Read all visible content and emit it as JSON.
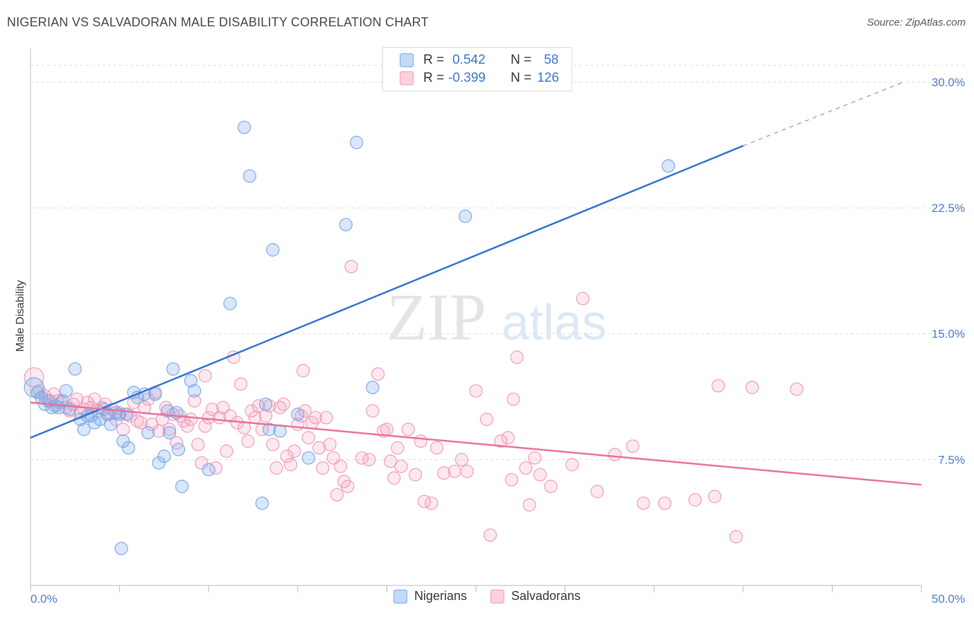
{
  "header": {
    "title": "NIGERIAN VS SALVADORAN MALE DISABILITY CORRELATION CHART",
    "source": "Source: ZipAtlas.com"
  },
  "watermark": {
    "zip": "ZIP",
    "atlas": "atlas"
  },
  "legend": {
    "rows": [
      {
        "r_label": "R =",
        "r_value": "0.542",
        "n_label": "N =",
        "n_value": "58",
        "color": "#7aaae8"
      },
      {
        "r_label": "R =",
        "r_value": "-0.399",
        "n_label": "N =",
        "n_value": "126",
        "color": "#f29bb8"
      }
    ]
  },
  "chart_data": {
    "type": "scatter",
    "title": "NIGERIAN VS SALVADORAN MALE DISABILITY CORRELATION CHART",
    "xlabel": "",
    "ylabel": "Male Disability",
    "xlim": [
      0,
      50
    ],
    "ylim": [
      0,
      32
    ],
    "x_tick_labels": [
      "0.0%",
      "50.0%"
    ],
    "y_ticks": [
      7.5,
      15.0,
      22.5,
      30.0
    ],
    "y_tick_labels": [
      "7.5%",
      "15.0%",
      "22.5%",
      "30.0%"
    ],
    "grid": true,
    "legend_position": "bottom",
    "series": [
      {
        "name": "Nigerians",
        "color": "#7aaae8",
        "line_color": "#2f72d0",
        "trend": {
          "x0": 0,
          "y0": 8.8,
          "x1": 40,
          "y1": 26.2,
          "dash_to_x": 49,
          "dash_to_y": 30.0
        },
        "points": [
          [
            0.2,
            11.8
          ],
          [
            0.4,
            11.5
          ],
          [
            0.6,
            11.2
          ],
          [
            0.8,
            10.8
          ],
          [
            1.0,
            11.0
          ],
          [
            1.2,
            10.6
          ],
          [
            1.4,
            10.7
          ],
          [
            1.6,
            10.6
          ],
          [
            1.8,
            11.0
          ],
          [
            2.0,
            11.6
          ],
          [
            2.2,
            10.5
          ],
          [
            2.5,
            12.9
          ],
          [
            2.8,
            9.9
          ],
          [
            3.0,
            9.3
          ],
          [
            3.2,
            10.1
          ],
          [
            3.4,
            10.1
          ],
          [
            3.6,
            9.7
          ],
          [
            3.9,
            9.9
          ],
          [
            4.1,
            10.5
          ],
          [
            4.3,
            10.2
          ],
          [
            4.5,
            9.6
          ],
          [
            4.8,
            10.3
          ],
          [
            5.0,
            10.2
          ],
          [
            5.2,
            8.6
          ],
          [
            5.4,
            10.2
          ],
          [
            5.5,
            8.2
          ],
          [
            5.8,
            11.5
          ],
          [
            6.0,
            11.2
          ],
          [
            6.4,
            11.4
          ],
          [
            6.6,
            9.1
          ],
          [
            7.0,
            11.4
          ],
          [
            7.2,
            7.3
          ],
          [
            7.5,
            7.7
          ],
          [
            7.7,
            10.4
          ],
          [
            7.8,
            9.1
          ],
          [
            8.0,
            12.9
          ],
          [
            8.2,
            10.3
          ],
          [
            8.3,
            8.1
          ],
          [
            8.5,
            5.9
          ],
          [
            9.0,
            12.2
          ],
          [
            9.2,
            11.6
          ],
          [
            10.0,
            6.9
          ],
          [
            11.2,
            16.8
          ],
          [
            12.0,
            27.3
          ],
          [
            12.3,
            24.4
          ],
          [
            13.0,
            4.9
          ],
          [
            13.2,
            10.8
          ],
          [
            13.4,
            9.3
          ],
          [
            13.6,
            20.0
          ],
          [
            14.0,
            9.2
          ],
          [
            15.0,
            10.2
          ],
          [
            15.6,
            7.6
          ],
          [
            17.7,
            21.5
          ],
          [
            18.3,
            26.4
          ],
          [
            19.2,
            11.8
          ],
          [
            24.4,
            22.0
          ],
          [
            35.8,
            25.0
          ],
          [
            5.1,
            2.2
          ]
        ]
      },
      {
        "name": "Salvadorans",
        "color": "#f29bb8",
        "line_color": "#e8709a",
        "trend": {
          "x0": 0,
          "y0": 10.9,
          "x1": 50,
          "y1": 6.0
        },
        "points": [
          [
            0.2,
            12.4
          ],
          [
            0.5,
            11.6
          ],
          [
            0.8,
            11.3
          ],
          [
            1.1,
            11.0
          ],
          [
            1.3,
            11.4
          ],
          [
            1.5,
            11.0
          ],
          [
            1.7,
            10.9
          ],
          [
            2.0,
            10.6
          ],
          [
            2.2,
            10.4
          ],
          [
            2.4,
            10.8
          ],
          [
            2.6,
            11.1
          ],
          [
            2.8,
            10.3
          ],
          [
            3.0,
            10.5
          ],
          [
            3.2,
            10.9
          ],
          [
            3.4,
            10.6
          ],
          [
            3.6,
            11.1
          ],
          [
            3.8,
            10.4
          ],
          [
            4.0,
            10.6
          ],
          [
            4.2,
            10.8
          ],
          [
            4.4,
            10.2
          ],
          [
            4.6,
            10.5
          ],
          [
            4.8,
            9.9
          ],
          [
            5.0,
            10.3
          ],
          [
            5.2,
            9.3
          ],
          [
            5.4,
            10.2
          ],
          [
            5.6,
            10.1
          ],
          [
            5.8,
            10.9
          ],
          [
            6.0,
            9.8
          ],
          [
            6.2,
            9.7
          ],
          [
            6.4,
            10.6
          ],
          [
            6.6,
            11.1
          ],
          [
            6.8,
            9.6
          ],
          [
            7.0,
            11.5
          ],
          [
            7.2,
            9.2
          ],
          [
            7.4,
            9.9
          ],
          [
            7.6,
            10.6
          ],
          [
            7.8,
            9.3
          ],
          [
            8.0,
            10.2
          ],
          [
            8.2,
            8.5
          ],
          [
            8.4,
            10.1
          ],
          [
            8.6,
            9.8
          ],
          [
            8.8,
            9.5
          ],
          [
            9.0,
            9.9
          ],
          [
            9.2,
            11.0
          ],
          [
            9.4,
            8.4
          ],
          [
            9.6,
            7.3
          ],
          [
            9.8,
            9.5
          ],
          [
            10.0,
            10.0
          ],
          [
            10.2,
            10.5
          ],
          [
            10.4,
            7.0
          ],
          [
            10.6,
            10.0
          ],
          [
            10.8,
            10.6
          ],
          [
            11.0,
            8.0
          ],
          [
            11.2,
            10.1
          ],
          [
            11.4,
            13.6
          ],
          [
            11.6,
            9.7
          ],
          [
            11.8,
            12.0
          ],
          [
            12.0,
            9.4
          ],
          [
            12.2,
            8.6
          ],
          [
            12.4,
            10.4
          ],
          [
            12.6,
            10.0
          ],
          [
            12.8,
            10.7
          ],
          [
            13.0,
            9.3
          ],
          [
            13.2,
            10.1
          ],
          [
            13.4,
            10.7
          ],
          [
            13.6,
            8.4
          ],
          [
            13.8,
            7.0
          ],
          [
            14.0,
            10.6
          ],
          [
            14.2,
            10.8
          ],
          [
            14.4,
            7.7
          ],
          [
            14.6,
            7.2
          ],
          [
            14.8,
            8.0
          ],
          [
            15.0,
            9.6
          ],
          [
            15.2,
            10.1
          ],
          [
            15.4,
            10.4
          ],
          [
            15.6,
            8.8
          ],
          [
            15.8,
            9.7
          ],
          [
            16.0,
            10.0
          ],
          [
            16.2,
            8.2
          ],
          [
            16.4,
            7.0
          ],
          [
            16.6,
            10.0
          ],
          [
            16.8,
            8.4
          ],
          [
            17.0,
            7.6
          ],
          [
            17.2,
            5.4
          ],
          [
            17.4,
            7.1
          ],
          [
            17.6,
            6.2
          ],
          [
            17.8,
            5.9
          ],
          [
            18.0,
            19.0
          ],
          [
            18.6,
            7.6
          ],
          [
            19.0,
            7.5
          ],
          [
            19.2,
            10.4
          ],
          [
            19.5,
            12.6
          ],
          [
            19.8,
            9.2
          ],
          [
            20.0,
            9.3
          ],
          [
            20.2,
            7.4
          ],
          [
            20.4,
            6.4
          ],
          [
            20.6,
            8.2
          ],
          [
            20.8,
            7.1
          ],
          [
            21.2,
            9.3
          ],
          [
            21.6,
            6.6
          ],
          [
            21.9,
            8.6
          ],
          [
            22.1,
            5.0
          ],
          [
            22.8,
            8.2
          ],
          [
            23.2,
            6.7
          ],
          [
            23.8,
            6.8
          ],
          [
            24.2,
            7.5
          ],
          [
            24.5,
            6.8
          ],
          [
            25.0,
            11.6
          ],
          [
            25.6,
            9.9
          ],
          [
            26.4,
            8.6
          ],
          [
            26.8,
            8.8
          ],
          [
            27.0,
            6.3
          ],
          [
            27.1,
            11.1
          ],
          [
            27.3,
            13.6
          ],
          [
            27.8,
            7.0
          ],
          [
            28.0,
            4.8
          ],
          [
            28.3,
            7.6
          ],
          [
            28.6,
            6.6
          ],
          [
            29.2,
            5.9
          ],
          [
            30.4,
            7.2
          ],
          [
            31.0,
            17.1
          ],
          [
            31.8,
            5.6
          ],
          [
            32.8,
            7.8
          ],
          [
            33.8,
            8.3
          ],
          [
            34.4,
            4.9
          ],
          [
            35.6,
            4.9
          ],
          [
            37.3,
            5.1
          ],
          [
            38.4,
            5.3
          ],
          [
            38.6,
            11.9
          ],
          [
            39.6,
            2.9
          ],
          [
            40.5,
            11.8
          ],
          [
            43.0,
            11.7
          ],
          [
            25.8,
            3.0
          ],
          [
            9.8,
            12.5
          ],
          [
            22.5,
            4.9
          ],
          [
            15.3,
            12.8
          ]
        ]
      }
    ]
  }
}
